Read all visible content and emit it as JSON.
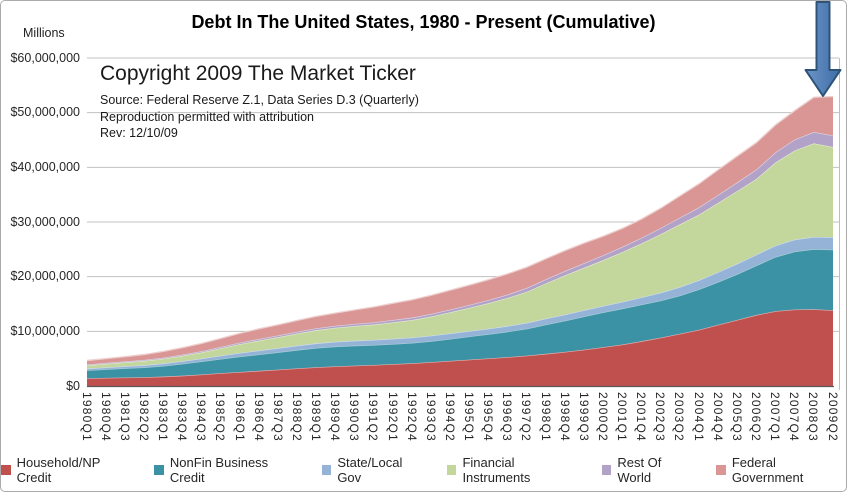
{
  "chart": {
    "units_label": "Millions",
    "title": "Debt In The United States, 1980 - Present (Cumulative)"
  },
  "annotation_block": {
    "copyright": "Copyright 2009 The Market Ticker",
    "source": "Source: Federal Reserve Z.1, Data Series D.3 (Quarterly)",
    "permission": "Reproduction permitted with attribution",
    "revision": "Rev: 12/10/09"
  },
  "chart_data": {
    "type": "area",
    "stacked": true,
    "title": "Debt In The United States, 1980 - Present (Cumulative)",
    "ylabel": "Millions",
    "ylim": [
      0,
      60000000
    ],
    "y_tick_interval": 10000000,
    "y_tick_labels": [
      "$0",
      "$10,000,000",
      "$20,000,000",
      "$30,000,000",
      "$40,000,000",
      "$50,000,000",
      "$60,000,000"
    ],
    "grid": true,
    "legend_position": "bottom",
    "categories": [
      "1980Q1",
      "1980Q4",
      "1981Q3",
      "1982Q2",
      "1983Q1",
      "1983Q4",
      "1984Q3",
      "1985Q2",
      "1986Q1",
      "1986Q4",
      "1987Q3",
      "1988Q2",
      "1989Q1",
      "1989Q4",
      "1990Q3",
      "1991Q2",
      "1992Q1",
      "1992Q4",
      "1993Q3",
      "1994Q2",
      "1995Q1",
      "1995Q4",
      "1996Q3",
      "1997Q2",
      "1998Q1",
      "1998Q4",
      "1999Q3",
      "2000Q2",
      "2001Q1",
      "2001Q4",
      "2002Q3",
      "2003Q2",
      "2004Q1",
      "2004Q4",
      "2005Q3",
      "2006Q2",
      "2007Q1",
      "2007Q4",
      "2008Q3",
      "2009Q2"
    ],
    "series": [
      {
        "name": "Household/NP Credit",
        "color": "#C0504D",
        "values": [
          1400000,
          1480000,
          1550000,
          1600000,
          1730000,
          1890000,
          2100000,
          2350000,
          2570000,
          2780000,
          3000000,
          3220000,
          3430000,
          3600000,
          3730000,
          3850000,
          4000000,
          4170000,
          4370000,
          4600000,
          4830000,
          5060000,
          5290000,
          5550000,
          5890000,
          6250000,
          6660000,
          7110000,
          7600000,
          8200000,
          8850000,
          9550000,
          10300000,
          11200000,
          12100000,
          13000000,
          13700000,
          14000000,
          14050000,
          13850000
        ]
      },
      {
        "name": "NonFin Business Credit",
        "color": "#3B92A5",
        "values": [
          1480000,
          1590000,
          1700000,
          1800000,
          1950000,
          2180000,
          2400000,
          2610000,
          2830000,
          3000000,
          3170000,
          3380000,
          3550000,
          3640000,
          3670000,
          3660000,
          3690000,
          3730000,
          3850000,
          4030000,
          4240000,
          4430000,
          4670000,
          4940000,
          5370000,
          5720000,
          6080000,
          6390000,
          6590000,
          6710000,
          6800000,
          7000000,
          7390000,
          7850000,
          8390000,
          9060000,
          9930000,
          10600000,
          11000000,
          11100000
        ]
      },
      {
        "name": "State/Local Gov",
        "color": "#95B3D7",
        "values": [
          310000,
          340000,
          370000,
          410000,
          450000,
          490000,
          530000,
          600000,
          660000,
          720000,
          760000,
          800000,
          830000,
          860000,
          890000,
          930000,
          960000,
          970000,
          990000,
          1000000,
          1000000,
          1010000,
          1030000,
          1060000,
          1090000,
          1120000,
          1140000,
          1160000,
          1220000,
          1330000,
          1440000,
          1560000,
          1670000,
          1790000,
          1900000,
          1980000,
          2070000,
          2190000,
          2240000,
          2270000
        ]
      },
      {
        "name": "Financial Instruments",
        "color": "#C3D69B",
        "values": [
          580000,
          640000,
          700000,
          780000,
          850000,
          970000,
          1130000,
          1350000,
          1610000,
          1830000,
          2020000,
          2200000,
          2400000,
          2560000,
          2690000,
          2800000,
          2990000,
          3200000,
          3510000,
          3870000,
          4240000,
          4660000,
          5120000,
          5700000,
          6430000,
          7160000,
          7780000,
          8390000,
          9110000,
          9860000,
          10700000,
          11480000,
          12000000,
          12680000,
          13290000,
          13860000,
          15200000,
          16300000,
          17100000,
          16500000
        ]
      },
      {
        "name": "Rest Of World",
        "color": "#B2A2C7",
        "values": [
          170000,
          180000,
          190000,
          200000,
          210000,
          220000,
          230000,
          250000,
          270000,
          290000,
          310000,
          330000,
          350000,
          370000,
          390000,
          410000,
          430000,
          450000,
          480000,
          500000,
          520000,
          570000,
          630000,
          700000,
          760000,
          810000,
          840000,
          890000,
          950000,
          1030000,
          1120000,
          1220000,
          1330000,
          1440000,
          1580000,
          1720000,
          1860000,
          2000000,
          2070000,
          2100000
        ]
      },
      {
        "name": "Federal Government",
        "color": "#D99694",
        "values": [
          740000,
          790000,
          860000,
          980000,
          1140000,
          1270000,
          1410000,
          1560000,
          1710000,
          1850000,
          1950000,
          2080000,
          2190000,
          2320000,
          2560000,
          2820000,
          3060000,
          3250000,
          3400000,
          3530000,
          3640000,
          3730000,
          3790000,
          3800000,
          3750000,
          3720000,
          3660000,
          3470000,
          3380000,
          3430000,
          3630000,
          3970000,
          4310000,
          4600000,
          4800000,
          4910000,
          5020000,
          5290000,
          6360000,
          7140000
        ]
      }
    ],
    "annotations": [
      {
        "type": "down-arrow",
        "target_category": "2009Q2",
        "fill_start": "#6C95C8",
        "fill_end": "#3E6DA6",
        "border": "#2F5377"
      }
    ],
    "style": {
      "gridline_color": "#C0C0C0",
      "axis_line_color": "#595959",
      "plot_right_border_color": "#BFBFBF"
    }
  }
}
